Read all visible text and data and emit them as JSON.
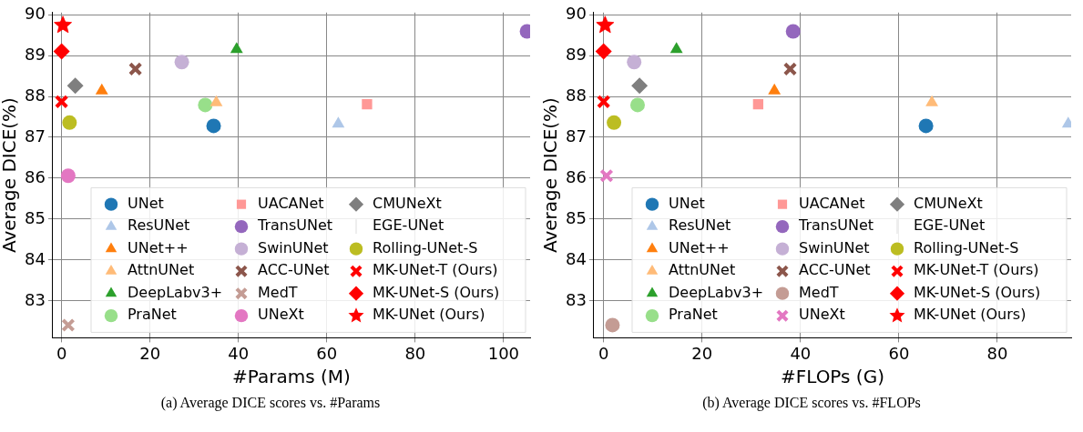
{
  "chart_data": [
    {
      "type": "scatter",
      "title": "(a) Average DICE scores vs. #Params",
      "xlabel": "#Params (M)",
      "ylabel": "Average DICE(%)",
      "xlim": [
        -2,
        106
      ],
      "ylim": [
        82.1,
        90.05
      ],
      "xticks": [
        0,
        20,
        40,
        60,
        80,
        100
      ],
      "yticks": [
        83,
        84,
        85,
        86,
        87,
        88,
        89,
        90
      ],
      "grid": true,
      "legend": "bottom right",
      "series": [
        {
          "name": "UNet",
          "color": "#1f77b4",
          "marker": "circle",
          "x": [
            34.4
          ],
          "values": [
            87.28
          ]
        },
        {
          "name": "ResUNet",
          "color": "#aec7e8",
          "marker": "triangle",
          "x": [
            62.6
          ],
          "values": [
            87.33
          ]
        },
        {
          "name": "UNet++",
          "color": "#ff7f0e",
          "marker": "triangle",
          "x": [
            9.1
          ],
          "values": [
            88.14
          ]
        },
        {
          "name": "AttnUNet",
          "color": "#ffbb78",
          "marker": "triangle",
          "x": [
            35.0
          ],
          "values": [
            87.85
          ]
        },
        {
          "name": "DeepLabv3+",
          "color": "#2ca02c",
          "marker": "triangle",
          "x": [
            39.6
          ],
          "values": [
            89.15
          ]
        },
        {
          "name": "PraNet",
          "color": "#98df8a",
          "marker": "circle",
          "x": [
            32.5
          ],
          "values": [
            87.79
          ]
        },
        {
          "name": "UACANet",
          "color": "#ff9896",
          "marker": "square",
          "x": [
            69.1
          ],
          "values": [
            87.81
          ]
        },
        {
          "name": "TransUNet",
          "color": "#9467bd",
          "marker": "circle",
          "x": [
            105.3
          ],
          "values": [
            89.59
          ]
        },
        {
          "name": "SwinUNet",
          "color": "#c5b0d5",
          "marker": "circle",
          "x": [
            27.2
          ],
          "values": [
            88.84
          ]
        },
        {
          "name": "ACC-UNet",
          "color": "#8c564b",
          "marker": "cross",
          "x": [
            16.7
          ],
          "values": [
            88.67
          ]
        },
        {
          "name": "MedT",
          "color": "#c49c94",
          "marker": "cross",
          "x": [
            1.5
          ],
          "values": [
            82.41
          ]
        },
        {
          "name": "UNeXt",
          "color": "#e377c2",
          "marker": "circle",
          "x": [
            1.5
          ],
          "values": [
            86.06
          ]
        },
        {
          "name": "CMUNeXt",
          "color": "#7f7f7f",
          "marker": "diamond",
          "x": [
            3.1
          ],
          "values": [
            88.26
          ]
        },
        {
          "name": "EGE-UNet",
          "color": "#dddddd",
          "marker": "none",
          "values": [
            null
          ]
        },
        {
          "name": "Rolling-UNet-S",
          "color": "#bcbd22",
          "marker": "circle",
          "x": [
            1.8
          ],
          "values": [
            87.36
          ]
        },
        {
          "name": "MK-UNet-T (Ours)",
          "color": "#ff0000",
          "marker": "cross",
          "x": [
            0.0
          ],
          "values": [
            87.87
          ]
        },
        {
          "name": "MK-UNet-S (Ours)",
          "color": "#ff0000",
          "marker": "diamond",
          "x": [
            0.0
          ],
          "values": [
            89.1
          ]
        },
        {
          "name": "MK-UNet (Ours)",
          "color": "#ff0000",
          "marker": "star",
          "x": [
            0.3
          ],
          "values": [
            89.74
          ]
        }
      ]
    },
    {
      "type": "scatter",
      "title": "(b) Average DICE scores vs. #FLOPs",
      "xlabel": "#FLOPs (G)",
      "ylabel": "Average DICE(%)",
      "xlim": [
        -2,
        95
      ],
      "ylim": [
        82.1,
        90.05
      ],
      "xticks": [
        0,
        20,
        40,
        60,
        80
      ],
      "yticks": [
        83,
        84,
        85,
        86,
        87,
        88,
        89,
        90
      ],
      "grid": true,
      "legend": "bottom right",
      "series": [
        {
          "name": "UNet",
          "color": "#1f77b4",
          "marker": "circle",
          "x": [
            65.5
          ],
          "values": [
            87.28
          ]
        },
        {
          "name": "ResUNet",
          "color": "#aec7e8",
          "marker": "triangle",
          "x": [
            94.4
          ],
          "values": [
            87.33
          ]
        },
        {
          "name": "UNet++",
          "color": "#ff7f0e",
          "marker": "triangle",
          "x": [
            34.7
          ],
          "values": [
            88.14
          ]
        },
        {
          "name": "AttnUNet",
          "color": "#ffbb78",
          "marker": "triangle",
          "x": [
            66.7
          ],
          "values": [
            87.85
          ]
        },
        {
          "name": "DeepLabv3+",
          "color": "#2ca02c",
          "marker": "triangle",
          "x": [
            14.8
          ],
          "values": [
            89.15
          ]
        },
        {
          "name": "PraNet",
          "color": "#98df8a",
          "marker": "circle",
          "x": [
            6.9
          ],
          "values": [
            87.79
          ]
        },
        {
          "name": "UACANet",
          "color": "#ff9896",
          "marker": "square",
          "x": [
            31.4
          ],
          "values": [
            87.81
          ]
        },
        {
          "name": "TransUNet",
          "color": "#9467bd",
          "marker": "circle",
          "x": [
            38.5
          ],
          "values": [
            89.59
          ]
        },
        {
          "name": "SwinUNet",
          "color": "#c5b0d5",
          "marker": "circle",
          "x": [
            6.2
          ],
          "values": [
            88.84
          ]
        },
        {
          "name": "ACC-UNet",
          "color": "#8c564b",
          "marker": "cross",
          "x": [
            37.9
          ],
          "values": [
            88.67
          ]
        },
        {
          "name": "MedT",
          "color": "#c49c94",
          "marker": "circle",
          "x": [
            1.8
          ],
          "values": [
            82.41
          ]
        },
        {
          "name": "UNeXt",
          "color": "#e377c2",
          "marker": "cross",
          "x": [
            0.6
          ],
          "values": [
            86.06
          ]
        },
        {
          "name": "CMUNeXt",
          "color": "#7f7f7f",
          "marker": "diamond",
          "x": [
            7.3
          ],
          "values": [
            88.26
          ]
        },
        {
          "name": "EGE-UNet",
          "color": "#dddddd",
          "marker": "none",
          "values": [
            null
          ]
        },
        {
          "name": "Rolling-UNet-S",
          "color": "#bcbd22",
          "marker": "circle",
          "x": [
            2.1
          ],
          "values": [
            87.36
          ]
        },
        {
          "name": "MK-UNet-T (Ours)",
          "color": "#ff0000",
          "marker": "cross",
          "x": [
            0.0
          ],
          "values": [
            87.87
          ]
        },
        {
          "name": "MK-UNet-S (Ours)",
          "color": "#ff0000",
          "marker": "diamond",
          "x": [
            0.0
          ],
          "values": [
            89.1
          ]
        },
        {
          "name": "MK-UNet (Ours)",
          "color": "#ff0000",
          "marker": "star",
          "x": [
            0.3
          ],
          "values": [
            89.74
          ]
        }
      ]
    }
  ]
}
